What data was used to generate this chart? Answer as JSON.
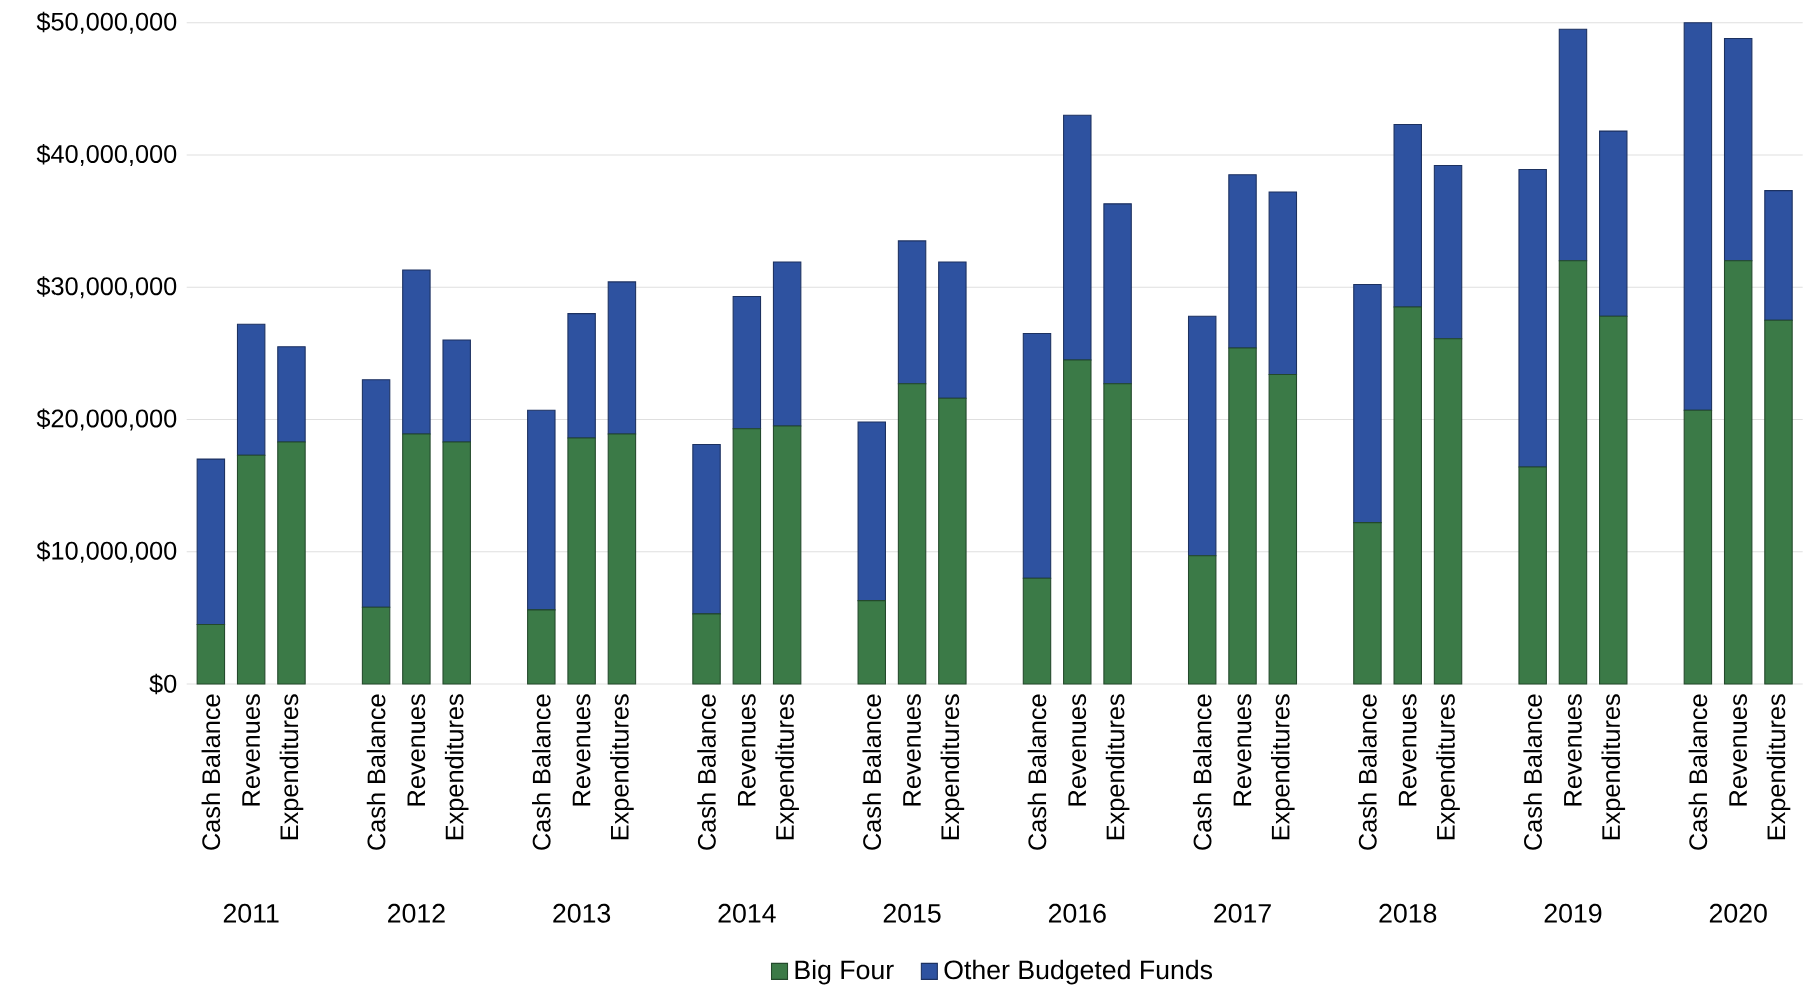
{
  "chart_data": {
    "type": "bar",
    "stacked": true,
    "categories": [
      "Cash Balance",
      "Revenues",
      "Expenditures",
      "Cash Balance",
      "Revenues",
      "Expenditures",
      "Cash Balance",
      "Revenues",
      "Expenditures",
      "Cash Balance",
      "Revenues",
      "Expenditures",
      "Cash Balance",
      "Revenues",
      "Expenditures",
      "Cash Balance",
      "Revenues",
      "Expenditures",
      "Cash Balance",
      "Revenues",
      "Expenditures",
      "Cash Balance",
      "Revenues",
      "Expenditures",
      "Cash Balance",
      "Revenues",
      "Expenditures",
      "Cash Balance",
      "Revenues",
      "Expenditures"
    ],
    "series": [
      {
        "name": "Big Four",
        "color": "#3b7a47",
        "values": [
          4500000,
          17300000,
          18300000,
          5800000,
          18900000,
          18300000,
          5600000,
          18600000,
          18900000,
          5300000,
          19300000,
          19500000,
          6300000,
          22700000,
          21600000,
          8000000,
          24500000,
          22700000,
          9700000,
          25400000,
          23400000,
          12200000,
          28500000,
          26100000,
          16400000,
          32000000,
          27800000,
          20700000,
          32000000,
          27500000
        ]
      },
      {
        "name": "Other Budgeted Funds",
        "color": "#2e52a0",
        "values": [
          12500000,
          9900000,
          7200000,
          17200000,
          12400000,
          7700000,
          15100000,
          9400000,
          11500000,
          12800000,
          10000000,
          12400000,
          13500000,
          10800000,
          10300000,
          18500000,
          18500000,
          13600000,
          18100000,
          13100000,
          13800000,
          18000000,
          13800000,
          13100000,
          22500000,
          17500000,
          14000000,
          29300000,
          16800000,
          9800000
        ]
      }
    ],
    "ylim": [
      0,
      50000000
    ],
    "yticks": [
      {
        "value": 0,
        "label": "$0"
      },
      {
        "value": 10000000,
        "label": "$10,000,000"
      },
      {
        "value": 20000000,
        "label": "$20,000,000"
      },
      {
        "value": 30000000,
        "label": "$30,000,000"
      },
      {
        "value": 40000000,
        "label": "$40,000,000"
      },
      {
        "value": 50000000,
        "label": "$50,000,000"
      }
    ],
    "grid": "y",
    "legend": "bottom",
    "annotations": [
      "2011",
      "2012",
      "2013",
      "2014",
      "2015",
      "2016",
      "2017",
      "2018",
      "2019",
      "2020"
    ]
  }
}
